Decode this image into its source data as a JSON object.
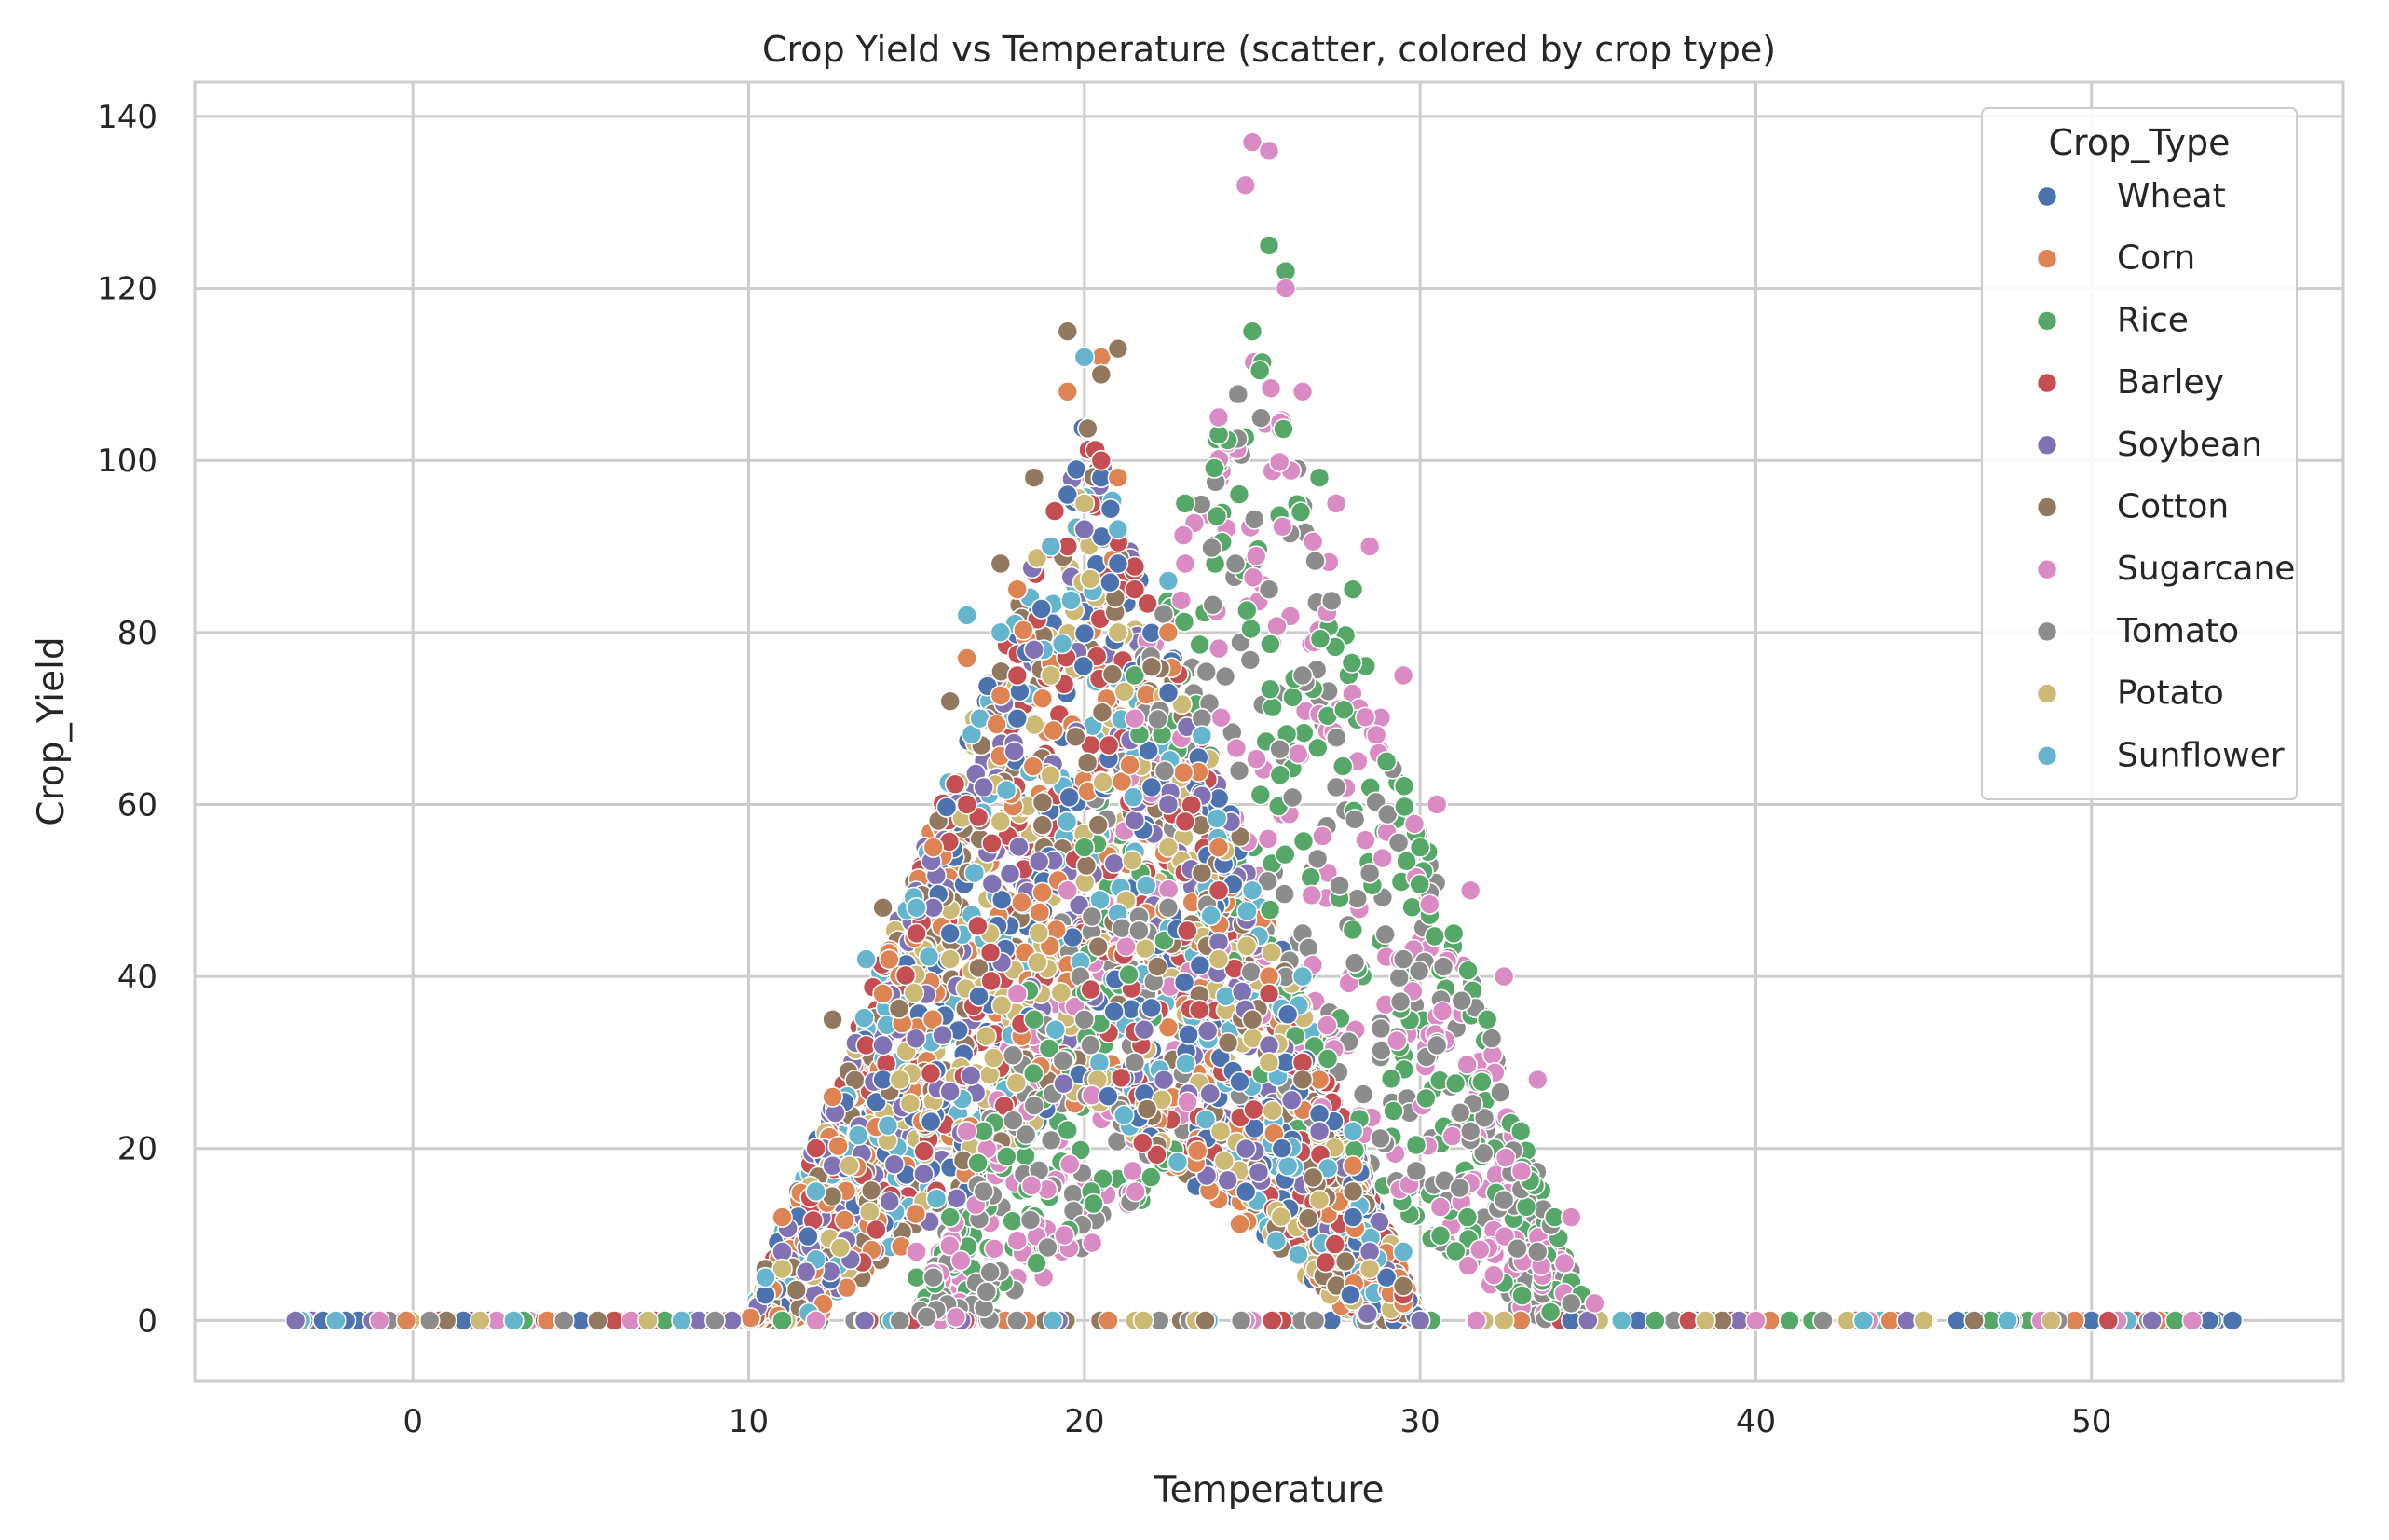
{
  "chart_data": {
    "type": "scatter",
    "title": "Crop Yield vs Temperature (scatter, colored by crop type)",
    "xlabel": "Temperature",
    "ylabel": "Crop_Yield",
    "xlim": [
      -6.5,
      57.5
    ],
    "ylim": [
      -7,
      144
    ],
    "xticks": [
      0,
      10,
      20,
      30,
      40,
      50
    ],
    "yticks": [
      0,
      20,
      40,
      60,
      80,
      100,
      120,
      140
    ],
    "grid": true,
    "legend": {
      "title": "Crop_Type",
      "position": "top-right"
    },
    "series": [
      {
        "name": "Wheat",
        "color": "#4c72b0",
        "group": "A",
        "points": [
          [
            -2,
            0
          ],
          [
            1.5,
            0
          ],
          [
            5,
            0
          ],
          [
            9,
            0
          ],
          [
            10.5,
            3
          ],
          [
            12,
            15
          ],
          [
            14,
            28
          ],
          [
            16,
            45
          ],
          [
            18,
            70
          ],
          [
            19.5,
            96
          ],
          [
            20.5,
            98
          ],
          [
            21,
            88
          ],
          [
            22,
            62
          ],
          [
            24,
            42
          ],
          [
            26,
            30
          ],
          [
            27,
            24
          ],
          [
            28,
            12
          ],
          [
            29,
            5
          ],
          [
            30,
            0
          ],
          [
            34.5,
            0
          ],
          [
            36.5,
            0
          ],
          [
            41,
            0
          ],
          [
            46,
            0
          ],
          [
            50,
            0
          ],
          [
            53.5,
            0
          ],
          [
            54.2,
            0
          ]
        ]
      },
      {
        "name": "Corn",
        "color": "#dd8452",
        "group": "A",
        "points": [
          [
            -0.2,
            0
          ],
          [
            4,
            0
          ],
          [
            8,
            0
          ],
          [
            11,
            12
          ],
          [
            12.5,
            26
          ],
          [
            14,
            38
          ],
          [
            15.5,
            55
          ],
          [
            16.5,
            77
          ],
          [
            18,
            85
          ],
          [
            19.5,
            108
          ],
          [
            20.5,
            112
          ],
          [
            21,
            98
          ],
          [
            22.5,
            80
          ],
          [
            24,
            55
          ],
          [
            25.5,
            40
          ],
          [
            27,
            28
          ],
          [
            28,
            18
          ],
          [
            29.5,
            2
          ],
          [
            33,
            0
          ],
          [
            37,
            0
          ],
          [
            44,
            0
          ],
          [
            49.5,
            0
          ],
          [
            52,
            0
          ]
        ]
      },
      {
        "name": "Rice",
        "color": "#55a868",
        "group": "B",
        "points": [
          [
            3.3,
            0
          ],
          [
            7.5,
            0
          ],
          [
            11,
            0
          ],
          [
            15,
            5
          ],
          [
            16,
            12
          ],
          [
            17,
            22
          ],
          [
            18.5,
            35
          ],
          [
            20,
            55
          ],
          [
            21.5,
            75
          ],
          [
            23,
            95
          ],
          [
            24,
            103
          ],
          [
            25,
            115
          ],
          [
            25.5,
            125
          ],
          [
            26,
            122
          ],
          [
            27,
            98
          ],
          [
            28,
            85
          ],
          [
            29,
            65
          ],
          [
            30,
            55
          ],
          [
            31,
            45
          ],
          [
            32,
            35
          ],
          [
            33,
            22
          ],
          [
            34,
            12
          ],
          [
            34.8,
            3
          ],
          [
            37,
            0
          ],
          [
            41,
            0
          ],
          [
            47,
            0
          ],
          [
            52.5,
            0
          ]
        ]
      },
      {
        "name": "Barley",
        "color": "#c44e52",
        "group": "A",
        "points": [
          [
            0.8,
            0
          ],
          [
            6,
            0
          ],
          [
            10.5,
            5
          ],
          [
            12,
            20
          ],
          [
            13.5,
            32
          ],
          [
            15,
            45
          ],
          [
            16.5,
            60
          ],
          [
            18,
            75
          ],
          [
            19.5,
            90
          ],
          [
            20.5,
            100
          ],
          [
            21.5,
            85
          ],
          [
            23,
            58
          ],
          [
            24,
            50
          ],
          [
            25.5,
            38
          ],
          [
            26.5,
            30
          ],
          [
            28,
            15
          ],
          [
            29.5,
            3
          ],
          [
            38,
            0
          ],
          [
            50.5,
            0
          ]
        ]
      },
      {
        "name": "Soybean",
        "color": "#8172b3",
        "group": "A",
        "points": [
          [
            -3.5,
            0
          ],
          [
            -1.2,
            0
          ],
          [
            9.5,
            0
          ],
          [
            11,
            8
          ],
          [
            12.5,
            18
          ],
          [
            14,
            32
          ],
          [
            15.5,
            48
          ],
          [
            17,
            62
          ],
          [
            18.5,
            78
          ],
          [
            20,
            92
          ],
          [
            21,
            80
          ],
          [
            22.5,
            60
          ],
          [
            24,
            44
          ],
          [
            25.5,
            32
          ],
          [
            27,
            22
          ],
          [
            28.5,
            8
          ],
          [
            30,
            0
          ],
          [
            35,
            0
          ],
          [
            39.5,
            0
          ],
          [
            44.5,
            0
          ],
          [
            51.8,
            0
          ]
        ]
      },
      {
        "name": "Cotton",
        "color": "#937860",
        "group": "A",
        "points": [
          [
            1,
            0
          ],
          [
            5.5,
            0
          ],
          [
            10.5,
            6
          ],
          [
            12.5,
            35
          ],
          [
            14,
            48
          ],
          [
            16,
            72
          ],
          [
            17.5,
            88
          ],
          [
            18.5,
            98
          ],
          [
            19.5,
            115
          ],
          [
            20.5,
            110
          ],
          [
            21,
            113
          ],
          [
            22,
            76
          ],
          [
            23.5,
            52
          ],
          [
            25,
            35
          ],
          [
            26.5,
            28
          ],
          [
            28,
            15
          ],
          [
            29.5,
            4
          ],
          [
            39,
            0
          ],
          [
            46.5,
            0
          ]
        ]
      },
      {
        "name": "Sugarcane",
        "color": "#da8bc3",
        "group": "B",
        "points": [
          [
            -1,
            0
          ],
          [
            2.5,
            0
          ],
          [
            6.5,
            0
          ],
          [
            12,
            0
          ],
          [
            15,
            8
          ],
          [
            16.5,
            22
          ],
          [
            18,
            38
          ],
          [
            19.5,
            50
          ],
          [
            21.5,
            70
          ],
          [
            23,
            88
          ],
          [
            24,
            105
          ],
          [
            24.8,
            132
          ],
          [
            25,
            137
          ],
          [
            25.5,
            136
          ],
          [
            26,
            120
          ],
          [
            26.5,
            108
          ],
          [
            27.5,
            95
          ],
          [
            28.5,
            90
          ],
          [
            29.5,
            75
          ],
          [
            30.5,
            60
          ],
          [
            31.5,
            50
          ],
          [
            32.5,
            40
          ],
          [
            33.5,
            28
          ],
          [
            34.5,
            12
          ],
          [
            35.2,
            2
          ],
          [
            40,
            0
          ],
          [
            48.5,
            0
          ],
          [
            53,
            0
          ]
        ]
      },
      {
        "name": "Tomato",
        "color": "#8c8c8c",
        "group": "B",
        "points": [
          [
            0.5,
            0
          ],
          [
            4.5,
            0
          ],
          [
            9,
            0
          ],
          [
            14.5,
            0
          ],
          [
            15.5,
            5
          ],
          [
            17,
            15
          ],
          [
            18.5,
            25
          ],
          [
            20,
            35
          ],
          [
            21.5,
            30
          ],
          [
            22.5,
            48
          ],
          [
            23.5,
            70
          ],
          [
            24.5,
            88
          ],
          [
            25.5,
            85
          ],
          [
            26.5,
            75
          ],
          [
            27.5,
            62
          ],
          [
            28.5,
            52
          ],
          [
            29.5,
            42
          ],
          [
            30.5,
            32
          ],
          [
            31.5,
            22
          ],
          [
            32.5,
            14
          ],
          [
            33.5,
            8
          ],
          [
            34.5,
            2
          ],
          [
            42,
            0
          ],
          [
            49,
            0
          ]
        ]
      },
      {
        "name": "Potato",
        "color": "#ccb974",
        "group": "A",
        "points": [
          [
            2,
            0
          ],
          [
            7,
            0
          ],
          [
            11,
            6
          ],
          [
            13,
            18
          ],
          [
            14.5,
            28
          ],
          [
            16,
            42
          ],
          [
            17.5,
            58
          ],
          [
            19,
            75
          ],
          [
            20,
            95
          ],
          [
            21,
            80
          ],
          [
            22.5,
            55
          ],
          [
            24,
            42
          ],
          [
            25.5,
            30
          ],
          [
            27,
            14
          ],
          [
            28.5,
            6
          ],
          [
            32.5,
            0
          ],
          [
            38.5,
            0
          ],
          [
            45,
            0
          ],
          [
            48.8,
            0
          ]
        ]
      },
      {
        "name": "Sunflower",
        "color": "#64b5cd",
        "group": "A",
        "points": [
          [
            -2.3,
            0
          ],
          [
            3,
            0
          ],
          [
            8,
            0
          ],
          [
            10.5,
            5
          ],
          [
            12,
            15
          ],
          [
            13.5,
            42
          ],
          [
            15,
            48
          ],
          [
            16.5,
            82
          ],
          [
            17.5,
            80
          ],
          [
            19,
            90
          ],
          [
            20,
            112
          ],
          [
            21,
            92
          ],
          [
            22.5,
            86
          ],
          [
            23.5,
            68
          ],
          [
            25,
            50
          ],
          [
            26.5,
            40
          ],
          [
            28,
            22
          ],
          [
            29.5,
            8
          ],
          [
            36,
            0
          ],
          [
            43.2,
            0
          ],
          [
            47.5,
            0
          ]
        ]
      }
    ]
  }
}
